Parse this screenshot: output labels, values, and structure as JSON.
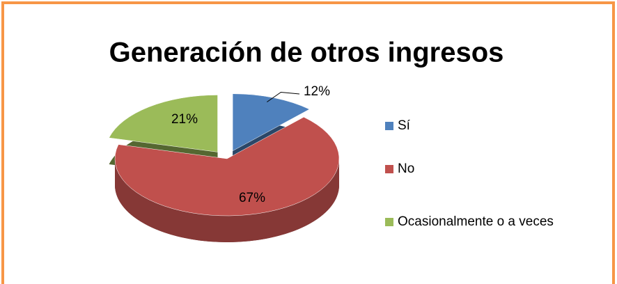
{
  "chart_data": {
    "type": "pie",
    "title": "Generación de otros ingresos",
    "categories": [
      "Sí",
      "No",
      "Ocasionalmente o a veces"
    ],
    "values": [
      12,
      67,
      21
    ],
    "value_labels": [
      "12%",
      "67%",
      "21%"
    ],
    "colors": [
      "#4f81bd",
      "#c0504d",
      "#9bbb59"
    ]
  }
}
